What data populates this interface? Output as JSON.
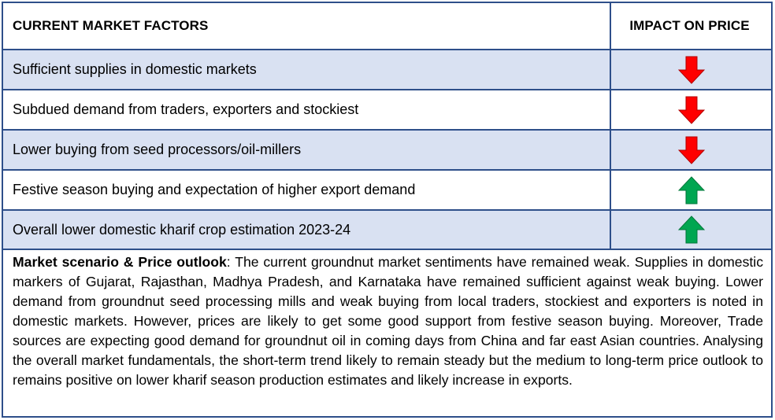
{
  "header": {
    "factors_label": "CURRENT MARKET FACTORS",
    "impact_label": "IMPACT ON PRICE"
  },
  "rows": [
    {
      "factor": "Sufficient supplies in domestic markets",
      "impact": "down",
      "icon": "red-down-arrow-icon"
    },
    {
      "factor": "Subdued demand from traders, exporters and stockiest",
      "impact": "down",
      "icon": "red-down-arrow-icon"
    },
    {
      "factor": "Lower buying from seed processors/oil-millers",
      "impact": "down",
      "icon": "red-down-arrow-icon"
    },
    {
      "factor": "Festive season buying and expectation of higher export demand",
      "impact": "up",
      "icon": "green-up-arrow-icon"
    },
    {
      "factor": "Overall lower domestic kharif crop estimation 2023-24",
      "impact": "up",
      "icon": "green-up-arrow-icon"
    }
  ],
  "outlook": {
    "label": "Market scenario & Price outlook",
    "text": ": The current groundnut market sentiments have remained weak. Supplies in domestic markers of Gujarat, Rajasthan, Madhya Pradesh, and Karnataka have remained sufficient against weak buying. Lower demand from groundnut seed processing mills and weak buying from local traders, stockiest and exporters is noted in domestic markets. However, prices are likely to get some good support from festive season buying. Moreover, Trade sources are expecting good demand for groundnut oil in coming days from China and far east Asian countries. Analysing the overall market fundamentals, the short-term trend likely to remain steady but the medium to long-term price outlook to remains positive on lower kharif season production estimates and likely increase in exports."
  },
  "colors": {
    "border": "#2e4f8a",
    "row_shade": "#d9e1f2",
    "down_arrow": "#ff0000",
    "up_arrow": "#00a651"
  }
}
